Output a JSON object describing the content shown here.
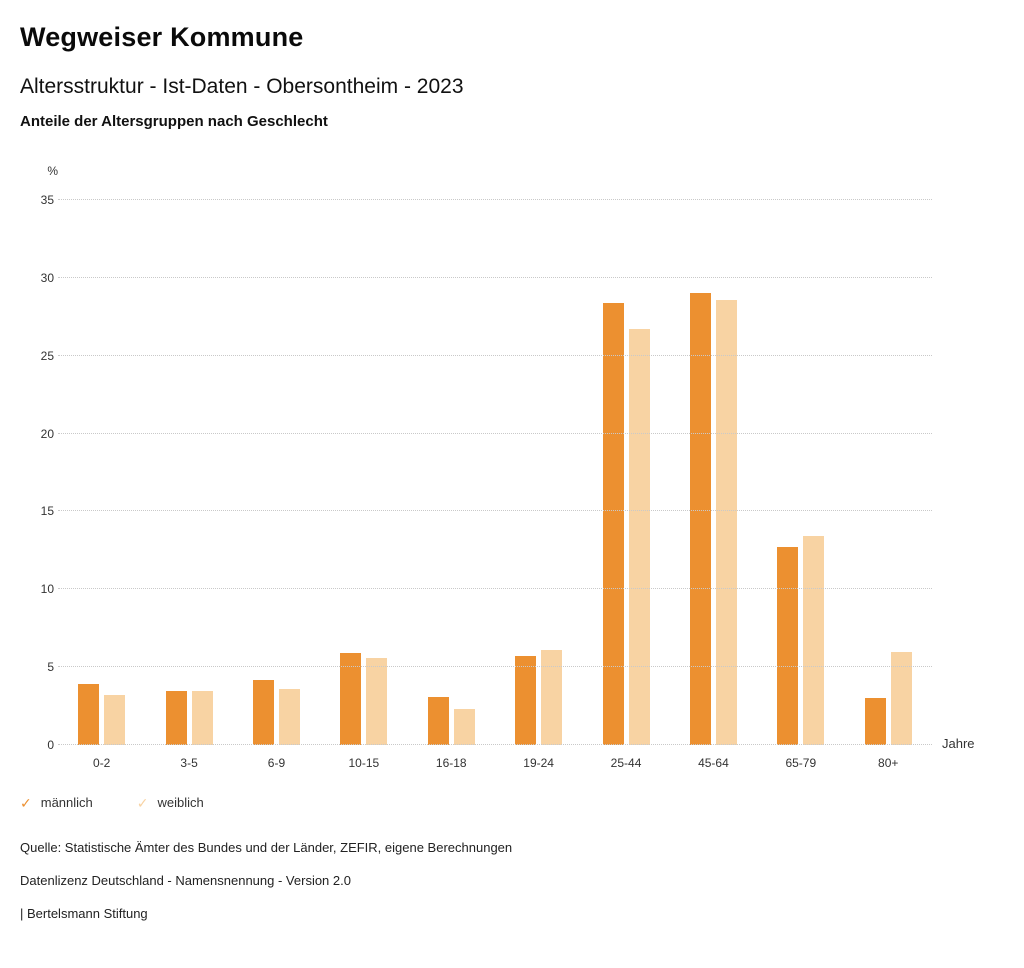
{
  "header": {
    "title": "Wegweiser Kommune",
    "subtitle": "Altersstruktur - Ist-Daten - Obersontheim - 2023",
    "description": "Anteile der Altersgruppen nach Geschlecht"
  },
  "chart_data": {
    "type": "bar",
    "title": "Anteile der Altersgruppen nach Geschlecht",
    "categories": [
      "0-2",
      "3-5",
      "6-9",
      "10-15",
      "16-18",
      "19-24",
      "25-44",
      "45-64",
      "65-79",
      "80+"
    ],
    "series": [
      {
        "name": "männlich",
        "color": "#EC9030",
        "values": [
          3.9,
          3.5,
          4.2,
          5.9,
          3.1,
          5.7,
          28.4,
          29.0,
          12.7,
          3.0
        ]
      },
      {
        "name": "weiblich",
        "color": "#F8D3A3",
        "values": [
          3.2,
          3.5,
          3.6,
          5.6,
          2.3,
          6.1,
          26.7,
          28.6,
          13.4,
          6.0
        ]
      }
    ],
    "xlabel": "Jahre",
    "ylabel": "%",
    "ylim": [
      0,
      35
    ],
    "yticks": [
      0,
      5,
      10,
      15,
      20,
      25,
      30,
      35
    ],
    "grid": "dotted-horizontal",
    "legend_position": "bottom-left",
    "legend_marker": "✓"
  },
  "footer": {
    "source": "Quelle: Statistische Ämter des Bundes und der Länder, ZEFIR, eigene Berechnungen",
    "license": "Datenlizenz Deutschland - Namensnennung - Version 2.0",
    "attribution": "| Bertelsmann Stiftung"
  }
}
